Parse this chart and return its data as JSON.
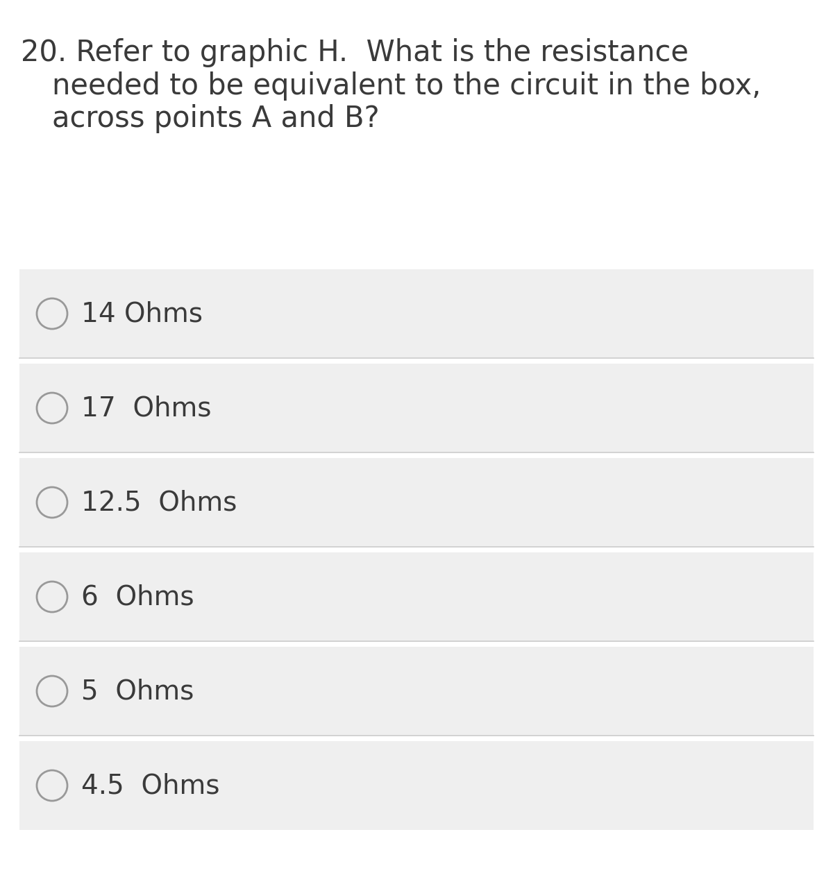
{
  "question_number": "20.",
  "question_text_line1": "Refer to graphic H.  What is the resistance",
  "question_text_line2": "needed to be equivalent to the circuit in the box,",
  "question_text_line3": "across points A and B?",
  "options": [
    "14 Ohms",
    "17  Ohms",
    "12.5  Ohms",
    "6  Ohms",
    "5  Ohms",
    "4.5  Ohms"
  ],
  "background_color": "#ffffff",
  "option_bg_color": "#efefef",
  "option_text_color": "#3a3a3a",
  "question_text_color": "#3a3a3a",
  "circle_edge_color": "#999999",
  "divider_color": "#d8d8d8",
  "font_size_question": 30,
  "font_size_options": 28,
  "fig_width": 12.0,
  "fig_height": 12.58,
  "dpi": 100
}
